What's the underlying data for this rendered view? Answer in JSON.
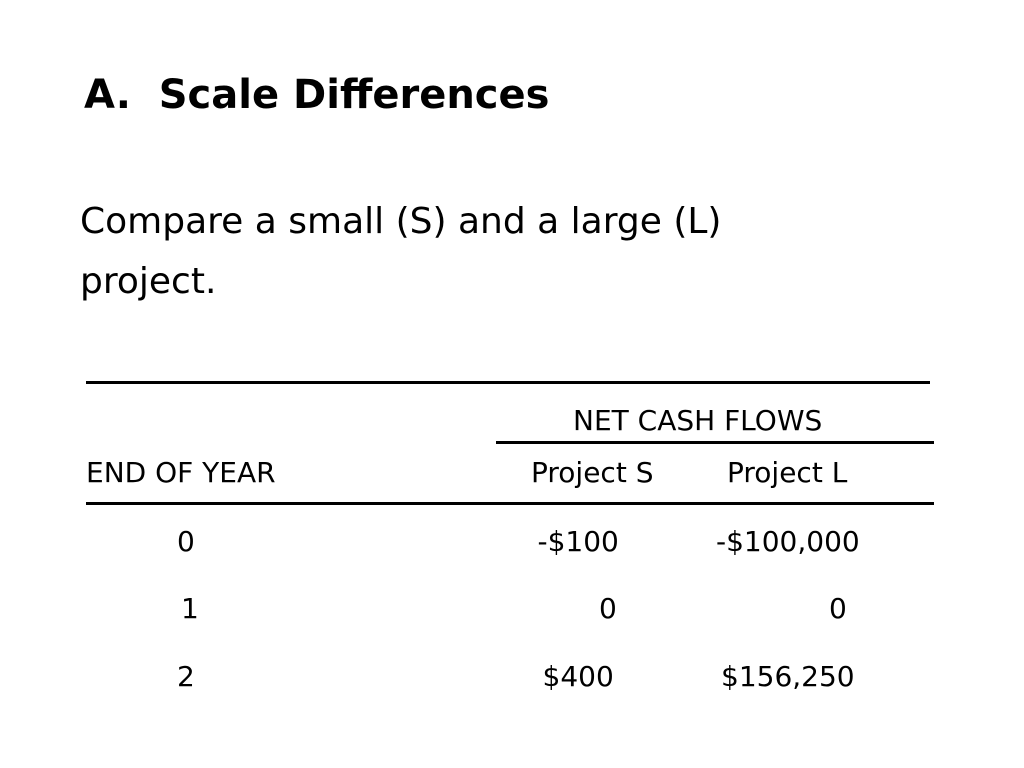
{
  "title": "A.  Scale Differences",
  "body": "Compare a small (S) and a large (L) project.",
  "table": {
    "group_header": "NET CASH FLOWS",
    "headers": [
      "END OF YEAR",
      "Project S",
      "Project L"
    ],
    "rows": [
      [
        "0",
        "-$100",
        "-$100,000"
      ],
      [
        "1",
        "0",
        "0"
      ],
      [
        "2",
        "$400",
        "$156,250"
      ]
    ]
  }
}
